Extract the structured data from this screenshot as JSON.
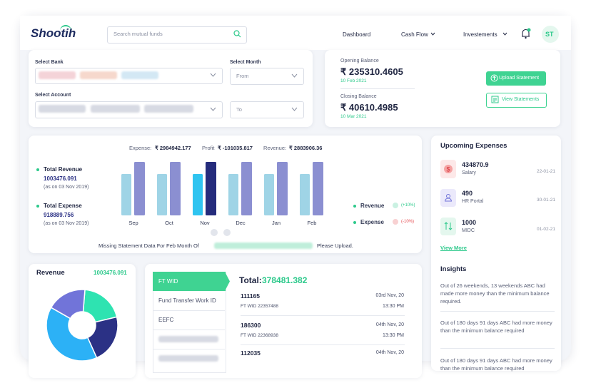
{
  "header": {
    "logo": "Shootih",
    "search_placeholder": "Search mutual funds",
    "nav": [
      "Dashboard",
      "Cash Flow",
      "Investements"
    ],
    "avatar": "ST"
  },
  "filters": {
    "bank_label": "Select Bank",
    "month_label": "Select Month",
    "from": "From",
    "account_label": "Select Account",
    "to": "To"
  },
  "balance": {
    "opening_label": "Opening Balance",
    "opening_value": "₹ 235310.4605",
    "opening_date": "10 Feb 2021",
    "closing_label": "Closing Balance",
    "closing_value": "₹ 40610.4985",
    "closing_date": "10 Mar 2021",
    "upload_button": "Upload Statement",
    "view_button": "View Statements"
  },
  "cashflow": {
    "summary": [
      {
        "label": "Expense:",
        "value": "₹ 2984942.177"
      },
      {
        "label": "Profit",
        "value": "₹ -101035.817"
      },
      {
        "label": "Revenue:",
        "value": "₹ 2883906.36"
      }
    ],
    "totals": [
      {
        "label": "Total Revenue",
        "value": "1003476.091",
        "note": "(as on 03 Nov 2019)"
      },
      {
        "label": "Total Expense",
        "value": "918889.756",
        "note": "(as on 03 Nov 2019)"
      }
    ],
    "chart": {
      "type": "bar",
      "categories": [
        "Sep",
        "Oct",
        "Nov",
        "Dec",
        "Jan",
        "Feb"
      ],
      "ylim": [
        0,
        80
      ],
      "legend_dot_color": "#2cc98b",
      "series": [
        {
          "name": "Revenue",
          "change": "(+10%)",
          "change_color": "#2cc98b",
          "values": [
            58,
            58,
            58,
            58,
            58,
            58
          ],
          "colors": [
            "#9fd4e6",
            "#9fd4e6",
            "#2fc4f0",
            "#9fd4e6",
            "#9fd4e6",
            "#9fd4e6"
          ]
        },
        {
          "name": "Expense",
          "change": "(-10%)",
          "change_color": "#e5484d",
          "values": [
            75,
            75,
            75,
            75,
            75,
            75
          ],
          "colors": [
            "#8b8fd1",
            "#8b8fd1",
            "#252c7c",
            "#8b8fd1",
            "#8b8fd1",
            "#8b8fd1"
          ]
        }
      ]
    },
    "missing_notice": {
      "before": "Missing Statement Data For Feb Month Of",
      "after": "Please Upload."
    }
  },
  "upcoming": {
    "title": "Upcoming Expenses",
    "items": [
      {
        "amount": "434870.9",
        "label": "Salary",
        "date": "22-01-21"
      },
      {
        "amount": "490",
        "label": "HR Portal",
        "date": "30-01-21"
      },
      {
        "amount": "1000",
        "label": "MIDC",
        "date": "01-02-21"
      }
    ],
    "view_more": "View More"
  },
  "insights": {
    "title": "Insights",
    "items": [
      "Out of 26 weekends, 13 weekends ABC had made more money than the minimum balance required.",
      "Out of 180 days 91 days ABC had more money than the minimum balance required",
      "Out of 180 days 91 days ABC had more money than the minimum balance required"
    ]
  },
  "revenue": {
    "title": "Revenue",
    "total": "1003476.091",
    "chart": {
      "type": "pie",
      "values": [
        20,
        22,
        40,
        18
      ],
      "colors": [
        "#2ee3b1",
        "#2b3185",
        "#2cb1f6",
        "#7174d9"
      ]
    }
  },
  "transfers": {
    "tabs": [
      "FT WID",
      "Fund Transfer Work ID",
      "EEFC"
    ],
    "total_label": "Total:",
    "total_value": "378481.382",
    "rows": [
      {
        "amount": "111165",
        "ref": "FT WID 22357488",
        "date": "03rd Nov, 20",
        "time": "13:30 PM"
      },
      {
        "amount": "186300",
        "ref": "FT WID 22368938",
        "date": "04th Nov, 20",
        "time": "13:30 PM"
      },
      {
        "amount": "112035",
        "date": "04th Nov, 20"
      }
    ]
  }
}
